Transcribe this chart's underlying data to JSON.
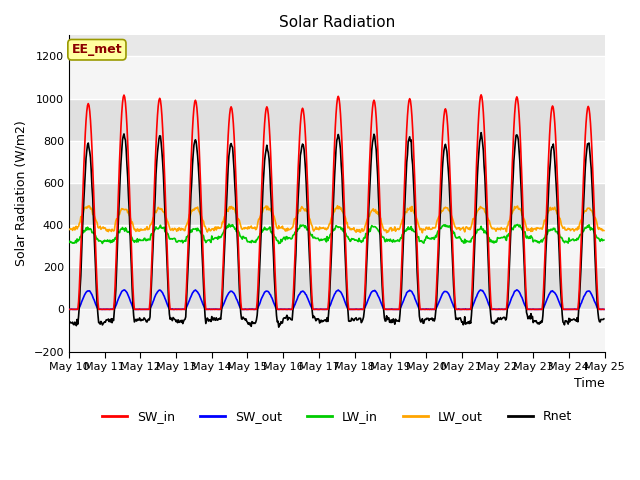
{
  "title": "Solar Radiation",
  "ylabel": "Solar Radiation (W/m2)",
  "xlabel": "Time",
  "ylim": [
    -200,
    1300
  ],
  "yticks": [
    -200,
    0,
    200,
    400,
    600,
    800,
    1000,
    1200
  ],
  "annotation": "EE_met",
  "annotation_color": "#8B0000",
  "annotation_bg": "#FFFFA0",
  "annotation_edge": "#999900",
  "n_days": 15,
  "SW_in_peak": 1000,
  "LW_in_base": 340,
  "LW_out_base": 400,
  "line_colors": {
    "SW_in": "#FF0000",
    "SW_out": "#0000FF",
    "LW_in": "#00CC00",
    "LW_out": "#FFA500",
    "Rnet": "#000000"
  },
  "line_widths": {
    "SW_in": 1.2,
    "SW_out": 1.2,
    "LW_in": 1.2,
    "LW_out": 1.2,
    "Rnet": 1.2
  },
  "bg_color": "#E8E8E8",
  "band_colors": [
    "#DCDCDC",
    "#F0F0F0"
  ],
  "grid_color": "#FFFFFF",
  "xticklabels": [
    "May 10",
    "May 11",
    "May 12",
    "May 13",
    "May 14",
    "May 15",
    "May 16",
    "May 17",
    "May 18",
    "May 19",
    "May 20",
    "May 21",
    "May 22",
    "May 23",
    "May 24",
    "May 25"
  ],
  "legend_labels": [
    "SW_in",
    "SW_out",
    "LW_in",
    "LW_out",
    "Rnet"
  ],
  "figsize": [
    6.4,
    4.8
  ],
  "dpi": 100
}
